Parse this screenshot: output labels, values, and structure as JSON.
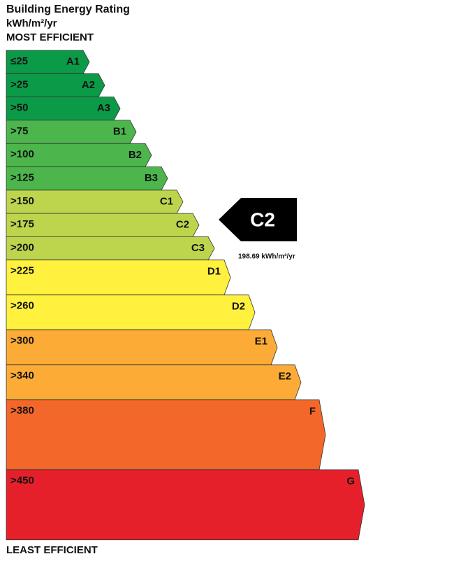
{
  "header": {
    "title": "Building Energy Rating",
    "units": "kWh/m²/yr",
    "top_label": "MOST EFFICIENT"
  },
  "bands": [
    {
      "threshold": "≤25",
      "grade": "A1",
      "color": "#0b9a48"
    },
    {
      "threshold": ">25",
      "grade": "A2",
      "color": "#0b9a48"
    },
    {
      "threshold": ">50",
      "grade": "A3",
      "color": "#0b9a48"
    },
    {
      "threshold": ">75",
      "grade": "B1",
      "color": "#4cb64c"
    },
    {
      "threshold": ">100",
      "grade": "B2",
      "color": "#4cb64c"
    },
    {
      "threshold": ">125",
      "grade": "B3",
      "color": "#4cb64c"
    },
    {
      "threshold": ">150",
      "grade": "C1",
      "color": "#bdd54d"
    },
    {
      "threshold": ">175",
      "grade": "C2",
      "color": "#bdd54d"
    },
    {
      "threshold": ">200",
      "grade": "C3",
      "color": "#bdd54d"
    },
    {
      "threshold": ">225",
      "grade": "D1",
      "color": "#fff13d"
    },
    {
      "threshold": ">260",
      "grade": "D2",
      "color": "#fff13d"
    },
    {
      "threshold": ">300",
      "grade": "E1",
      "color": "#fbab36"
    },
    {
      "threshold": ">340",
      "grade": "E2",
      "color": "#fbab36"
    },
    {
      "threshold": ">380",
      "grade": "F",
      "color": "#f4672a"
    },
    {
      "threshold": ">450",
      "grade": "G",
      "color": "#e5202b"
    }
  ],
  "indicator": {
    "grade": "C2",
    "value_text": "198.69 kWh/m²/yr"
  },
  "footer": {
    "bottom_label": "LEAST EFFICIENT"
  }
}
